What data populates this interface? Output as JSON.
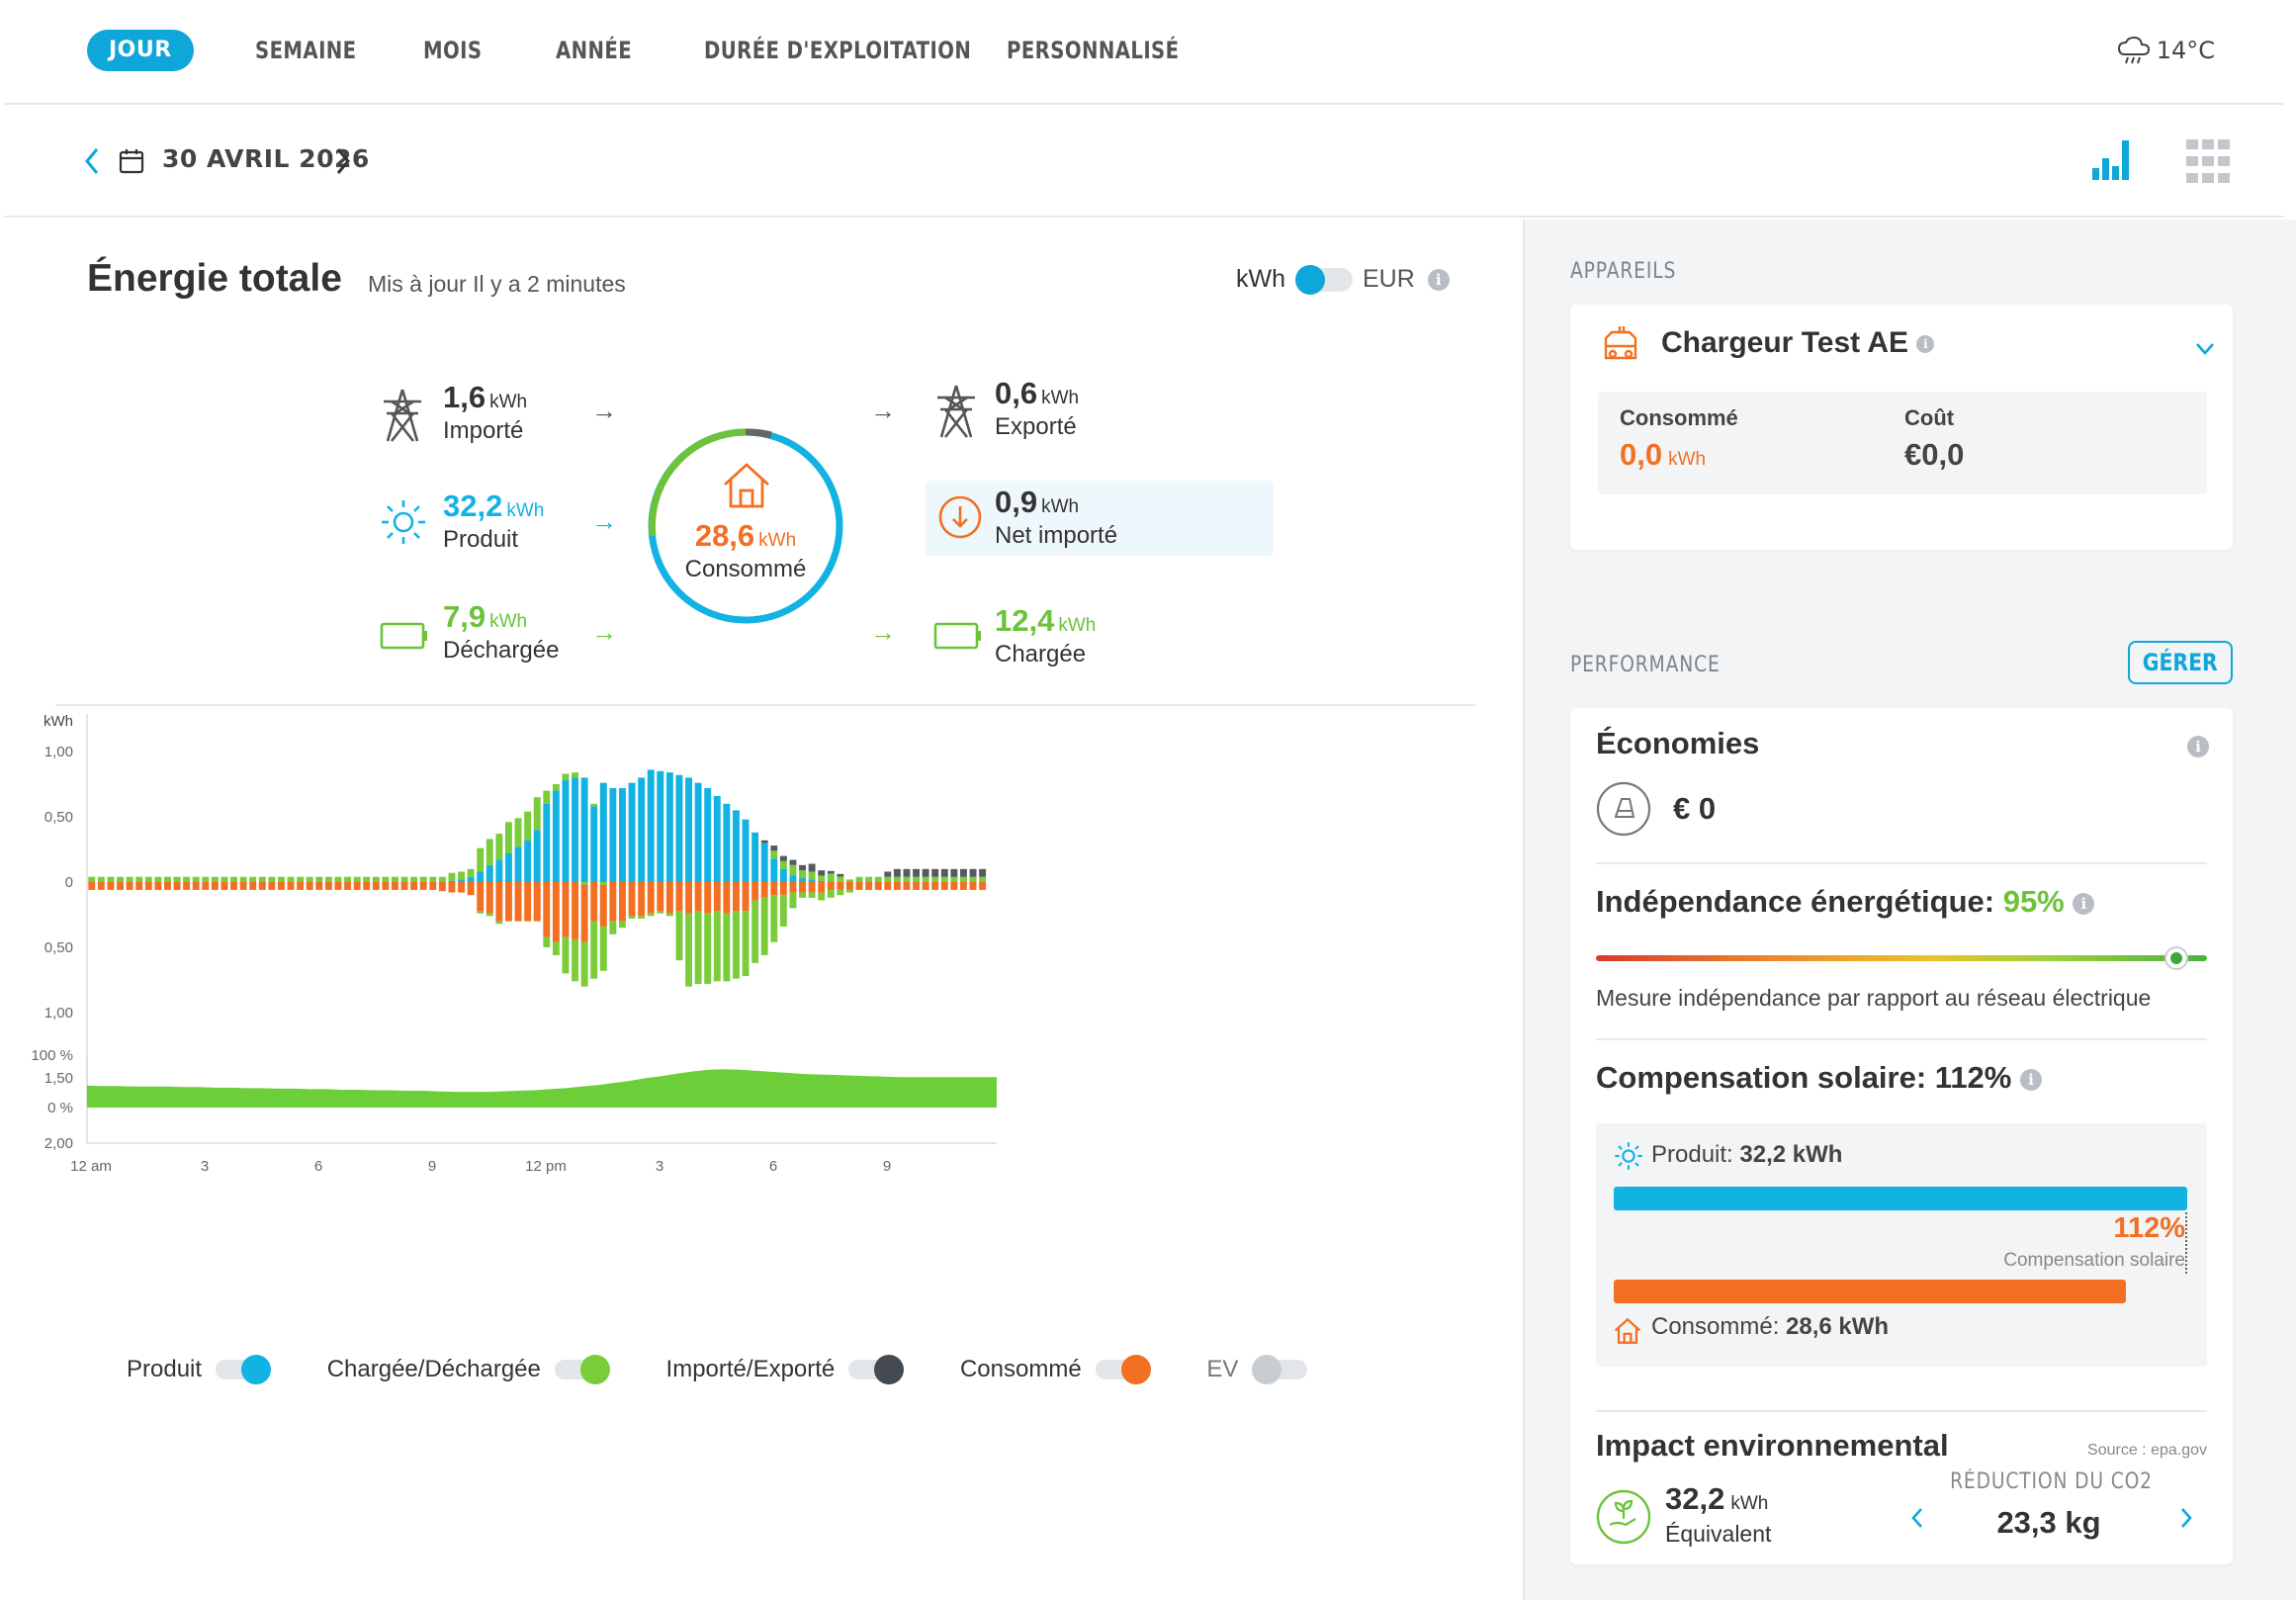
{
  "nav": {
    "tabs": [
      {
        "label": "JOUR",
        "active": true
      },
      {
        "label": "SEMAINE",
        "active": false
      },
      {
        "label": "MOIS",
        "active": false
      },
      {
        "label": "ANNÉE",
        "active": false
      },
      {
        "label": "DURÉE D'EXPLOITATION",
        "active": false
      },
      {
        "label": "PERSONNALISÉ",
        "active": false
      }
    ],
    "weather": {
      "icon": "cloud-rain-icon",
      "temp": "14°C"
    }
  },
  "datebar": {
    "date": "30 AVRIL 2026"
  },
  "energy": {
    "title": "Énergie totale",
    "updated": "Mis à jour Il y a 2 minutes",
    "unit_kwh": "kWh",
    "unit_eur": "EUR",
    "flows": {
      "imported": {
        "value": "1,6",
        "unit": "kWh",
        "label": "Importé"
      },
      "produced": {
        "value": "32,2",
        "unit": "kWh",
        "label": "Produit"
      },
      "discharged": {
        "value": "7,9",
        "unit": "kWh",
        "label": "Déchargée"
      },
      "consumed": {
        "value": "28,6",
        "unit": "kWh",
        "label": "Consommé"
      },
      "exported": {
        "value": "0,6",
        "unit": "kWh",
        "label": "Exporté"
      },
      "net_imported": {
        "value": "0,9",
        "unit": "kWh",
        "label": "Net importé"
      },
      "charged": {
        "value": "12,4",
        "unit": "kWh",
        "label": "Chargée"
      }
    }
  },
  "chart_data": {
    "type": "bar",
    "ylabel": "kWh",
    "ylim": [
      -2,
      2
    ],
    "y_ticks": [
      "2,00",
      "1,50",
      "1,00",
      "0,50",
      "0",
      "0,50",
      "1,00",
      "1,50",
      "2,00"
    ],
    "x_ticks": [
      "12 am",
      "3",
      "6",
      "9",
      "12 pm",
      "3",
      "6",
      "9"
    ],
    "stacked": true,
    "series": [
      {
        "name": "Produit",
        "color": "#12b3e3",
        "values": [
          0,
          0,
          0,
          0,
          0,
          0,
          0,
          0,
          0,
          0,
          0,
          0,
          0,
          0,
          0,
          0,
          0,
          0,
          0,
          0,
          0,
          0,
          0,
          0,
          0,
          0,
          0,
          0,
          0,
          0,
          0,
          0,
          0,
          0,
          0,
          0,
          0,
          0,
          0.01,
          0.02,
          0.04,
          0.08,
          0.13,
          0.17,
          0.22,
          0.27,
          0.32,
          0.4,
          0.6,
          0.7,
          0.78,
          0.8,
          0.8,
          0.58,
          0.76,
          0.72,
          0.72,
          0.76,
          0.8,
          0.86,
          0.85,
          0.84,
          0.82,
          0.8,
          0.76,
          0.72,
          0.66,
          0.6,
          0.55,
          0.48,
          0.38,
          0.3,
          0.18,
          0.1,
          0.05,
          0.03,
          0.02,
          0.01,
          0.005,
          0.002,
          0,
          0,
          0,
          0,
          0,
          0,
          0,
          0,
          0,
          0,
          0,
          0,
          0,
          0,
          0,
          0
        ]
      },
      {
        "name": "Chargée/Déchargée",
        "color": "#7acc3a",
        "values": [
          0.04,
          0.04,
          0.04,
          0.04,
          0.04,
          0.04,
          0.04,
          0.04,
          0.04,
          0.04,
          0.04,
          0.04,
          0.04,
          0.04,
          0.04,
          0.04,
          0.04,
          0.04,
          0.04,
          0.04,
          0.04,
          0.04,
          0.04,
          0.04,
          0.04,
          0.04,
          0.04,
          0.04,
          0.04,
          0.04,
          0.04,
          0.04,
          0.04,
          0.04,
          0.04,
          0.04,
          0.04,
          0.04,
          0.06,
          0.06,
          0.06,
          0.18,
          0.2,
          0.2,
          0.24,
          0.22,
          0.22,
          0.25,
          0.1,
          0.05,
          0.05,
          0.04,
          -0.02,
          0.02,
          -0.02,
          0,
          0,
          0,
          0,
          0,
          0,
          0,
          0,
          0,
          0,
          0,
          0,
          0,
          0,
          0,
          0,
          0,
          0.06,
          0.06,
          0.08,
          0.06,
          0.06,
          0.04,
          0.06,
          0.04,
          0.02,
          0.04,
          0.04,
          0.04,
          0.04,
          0.04,
          0.04,
          0.04,
          0.04,
          0.04,
          0.04,
          0.04,
          0.04,
          0.04,
          0.04
        ]
      },
      {
        "name": "Importé/Exporté",
        "color": "#555a5f",
        "values": [
          0,
          0,
          0,
          0,
          0,
          0,
          0,
          0,
          0,
          0,
          0,
          0,
          0,
          0,
          0,
          0,
          0,
          0,
          0,
          0,
          0,
          0,
          0,
          0,
          0,
          0,
          0,
          0,
          0,
          0,
          0,
          0,
          0,
          0,
          0,
          0,
          0,
          0,
          0,
          0,
          0,
          0,
          0,
          0,
          0,
          0,
          0,
          0,
          0,
          0,
          0,
          0,
          0,
          0,
          0,
          0,
          0,
          0,
          0,
          0,
          0,
          0,
          0,
          0,
          0,
          0,
          0,
          0,
          0,
          0,
          0,
          0.02,
          0.04,
          0.04,
          0.04,
          0.04,
          0.06,
          0.04,
          0.02,
          0.02,
          0,
          0,
          0,
          0,
          0.04,
          0.06,
          0.06,
          0.06,
          0.06,
          0.06,
          0.06,
          0.06,
          0.06,
          0.06,
          0.06
        ]
      },
      {
        "name": "Consommé",
        "color": "#f36f21",
        "values": [
          -0.06,
          -0.06,
          -0.06,
          -0.06,
          -0.06,
          -0.06,
          -0.06,
          -0.06,
          -0.06,
          -0.06,
          -0.06,
          -0.06,
          -0.06,
          -0.06,
          -0.06,
          -0.06,
          -0.06,
          -0.06,
          -0.06,
          -0.06,
          -0.06,
          -0.06,
          -0.06,
          -0.06,
          -0.06,
          -0.06,
          -0.06,
          -0.06,
          -0.06,
          -0.06,
          -0.06,
          -0.06,
          -0.06,
          -0.06,
          -0.06,
          -0.06,
          -0.06,
          -0.07,
          -0.08,
          -0.08,
          -0.1,
          -0.22,
          -0.24,
          -0.3,
          -0.3,
          -0.3,
          -0.3,
          -0.3,
          -0.42,
          -0.46,
          -0.42,
          -0.44,
          -0.44,
          -0.3,
          -0.32,
          -0.3,
          -0.3,
          -0.26,
          -0.26,
          -0.24,
          -0.22,
          -0.24,
          -0.22,
          -0.24,
          -0.22,
          -0.24,
          -0.22,
          -0.24,
          -0.22,
          -0.22,
          -0.14,
          -0.12,
          -0.1,
          -0.1,
          -0.08,
          -0.08,
          -0.08,
          -0.08,
          -0.06,
          -0.06,
          -0.06,
          -0.06,
          -0.06,
          -0.06,
          -0.06,
          -0.06,
          -0.06,
          -0.06,
          -0.06,
          -0.06,
          -0.06,
          -0.06,
          -0.06,
          -0.06,
          -0.06
        ]
      },
      {
        "name": "Chargée",
        "color": "#7acc3a",
        "values": [
          0,
          0,
          0,
          0,
          0,
          0,
          0,
          0,
          0,
          0,
          0,
          0,
          0,
          0,
          0,
          0,
          0,
          0,
          0,
          0,
          0,
          0,
          0,
          0,
          0,
          0,
          0,
          0,
          0,
          0,
          0,
          0,
          0,
          0,
          0,
          0,
          0,
          0,
          0,
          0,
          0,
          -0.02,
          -0.02,
          -0.02,
          0,
          0,
          0,
          0,
          -0.08,
          -0.1,
          -0.28,
          -0.32,
          -0.34,
          -0.44,
          -0.34,
          -0.1,
          -0.05,
          -0.02,
          -0.02,
          -0.02,
          -0.02,
          -0.02,
          -0.38,
          -0.56,
          -0.56,
          -0.54,
          -0.54,
          -0.52,
          -0.52,
          -0.5,
          -0.48,
          -0.44,
          -0.36,
          -0.24,
          -0.12,
          -0.04,
          -0.04,
          -0.06,
          -0.06,
          -0.04,
          -0.02,
          0,
          0,
          0,
          0,
          0,
          0,
          0,
          0,
          0,
          0,
          0,
          0,
          0,
          0
        ]
      }
    ],
    "independence_area": {
      "ylim": [
        0,
        100
      ],
      "y_ticks": [
        "100 %",
        "0 %"
      ],
      "values": [
        42,
        41,
        41,
        40,
        40,
        40,
        39,
        39,
        38,
        38,
        37,
        37,
        36,
        36,
        35,
        35,
        34,
        34,
        33,
        33,
        32,
        32,
        31,
        30,
        30,
        30,
        31,
        32,
        33,
        35,
        37,
        40,
        43,
        47,
        51,
        56,
        60,
        65,
        69,
        72,
        73,
        72,
        70,
        68,
        66,
        64,
        63,
        62,
        61,
        60,
        59,
        58,
        58,
        58,
        58,
        58,
        58,
        58
      ]
    },
    "legend": [
      {
        "label": "Produit",
        "color": "#12b3e3"
      },
      {
        "label": "Chargée/Déchargée",
        "color": "#7acc3a"
      },
      {
        "label": "Importé/Exporté",
        "color": "#444a50"
      },
      {
        "label": "Consommé",
        "color": "#f36f21"
      },
      {
        "label": "EV",
        "color": "#c8cdd2"
      }
    ]
  },
  "devices": {
    "section_title": "APPAREILS",
    "name": "Chargeur Test AE",
    "consumed_label": "Consommé",
    "consumed_value": "0,0",
    "consumed_unit": "kWh",
    "cost_label": "Coût",
    "cost_value": "€0,0"
  },
  "performance": {
    "section_title": "PERFORMANCE",
    "manage_label": "GÉRER",
    "savings": {
      "title": "Économies",
      "value": "€ 0"
    },
    "independence": {
      "title": "Indépendance énergétique:",
      "value": "95%",
      "level": 0.95,
      "desc": "Mesure indépendance par rapport au réseau électrique"
    },
    "solar": {
      "title": "Compensation solaire: 112%",
      "produced_label": "Produit:",
      "produced_value": "32,2 kWh",
      "pct": "112%",
      "pct_label": "Compensation solaire",
      "consumed_label": "Consommé:",
      "consumed_value": "28,6 kWh",
      "produced_fraction": 1.0,
      "consumed_fraction": 0.893
    },
    "impact": {
      "title": "Impact environnemental",
      "source": "Source : epa.gov",
      "value": "32,2",
      "unit": "kWh",
      "equiv": "Équivalent",
      "co2_label": "RÉDUCTION DU CO2",
      "co2_value": "23,3 kg"
    }
  },
  "colors": {
    "accent": "#0fa7d9",
    "orange": "#f36f21",
    "green": "#6cc33a",
    "grey": "#555a5f"
  }
}
